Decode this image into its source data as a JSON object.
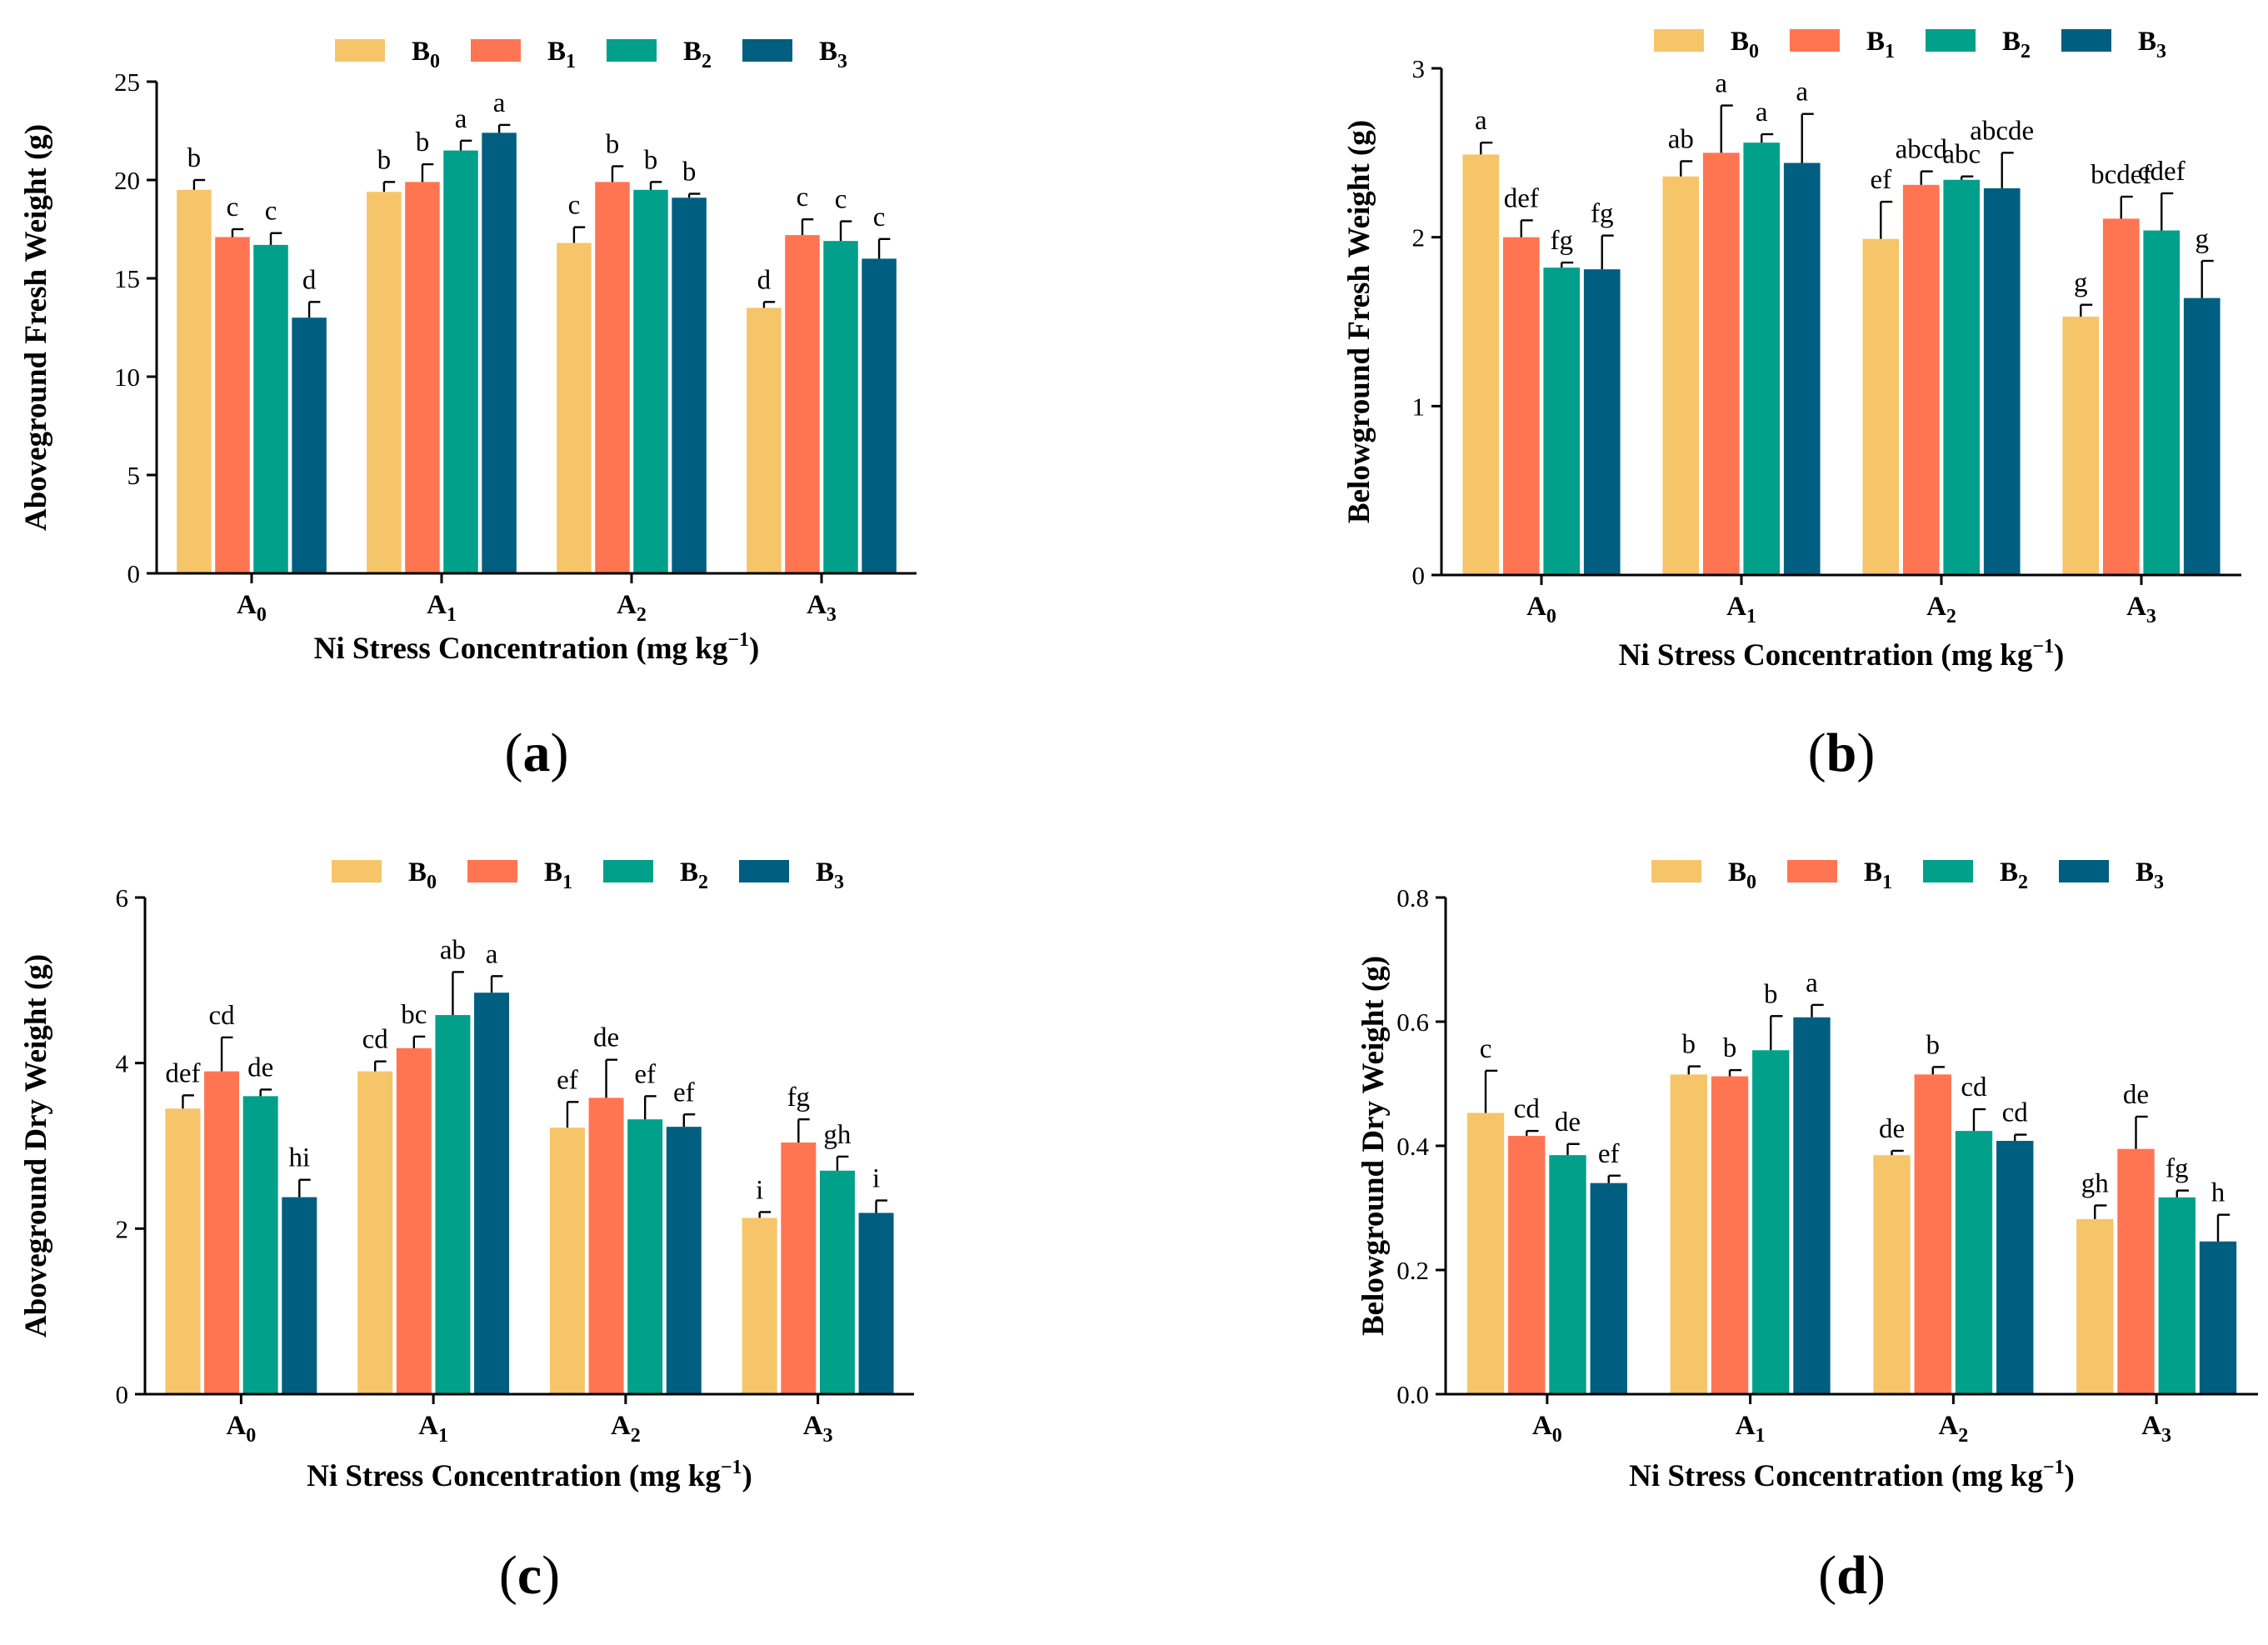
{
  "colors": {
    "B0": "#F6C56A",
    "B1": "#FF7552",
    "B2": "#00A08B",
    "B3": "#005F80"
  },
  "chart_data": [
    {
      "type": "bar",
      "panel": "(a)",
      "ylabel": "Aboveground Fresh Weight (g)",
      "xlabel": "Ni Stress Concentration (mg kg−1)",
      "ylim": [
        0,
        25
      ],
      "yticks": [
        "0",
        "5",
        "10",
        "15",
        "20",
        "25"
      ],
      "categories": [
        "A0",
        "A1",
        "A2",
        "A3"
      ],
      "series": [
        {
          "name": "B0",
          "values": [
            19.5,
            19.4,
            16.8,
            13.5
          ],
          "errors": [
            0.5,
            0.5,
            0.8,
            0.3
          ],
          "letters": [
            "b",
            "b",
            "c",
            "d"
          ]
        },
        {
          "name": "B1",
          "values": [
            17.1,
            19.9,
            19.9,
            17.2
          ],
          "errors": [
            0.4,
            0.9,
            0.8,
            0.8
          ],
          "letters": [
            "c",
            "b",
            "b",
            "c"
          ]
        },
        {
          "name": "B2",
          "values": [
            16.7,
            21.5,
            19.5,
            16.9
          ],
          "errors": [
            0.6,
            0.5,
            0.4,
            1.0
          ],
          "letters": [
            "c",
            "a",
            "b",
            "c"
          ]
        },
        {
          "name": "B3",
          "values": [
            13.0,
            22.4,
            19.1,
            16.0
          ],
          "errors": [
            0.8,
            0.4,
            0.2,
            1.0
          ],
          "letters": [
            "d",
            "a",
            "b",
            "c"
          ]
        }
      ]
    },
    {
      "type": "bar",
      "panel": "(b)",
      "ylabel": "Belowground Fresh Weight (g)",
      "xlabel": "Ni Stress Concentration (mg kg−1)",
      "ylim": [
        0,
        3
      ],
      "yticks": [
        "0",
        "1",
        "2",
        "3"
      ],
      "categories": [
        "A0",
        "A1",
        "A2",
        "A3"
      ],
      "series": [
        {
          "name": "B0",
          "values": [
            2.49,
            2.36,
            1.99,
            1.53
          ],
          "errors": [
            0.07,
            0.09,
            0.22,
            0.07
          ],
          "letters": [
            "a",
            "ab",
            "ef",
            "g"
          ]
        },
        {
          "name": "B1",
          "values": [
            2.0,
            2.5,
            2.31,
            2.11
          ],
          "errors": [
            0.1,
            0.28,
            0.08,
            0.13
          ],
          "letters": [
            "def",
            "a",
            "abcd",
            "bcdef"
          ]
        },
        {
          "name": "B2",
          "values": [
            1.82,
            2.56,
            2.34,
            2.04
          ],
          "errors": [
            0.03,
            0.05,
            0.02,
            0.22
          ],
          "letters": [
            "fg",
            "a",
            "abc",
            "cdef"
          ]
        },
        {
          "name": "B3",
          "values": [
            1.81,
            2.44,
            2.29,
            1.64
          ],
          "errors": [
            0.2,
            0.29,
            0.21,
            0.22
          ],
          "letters": [
            "fg",
            "a",
            "abcde",
            "g"
          ]
        }
      ]
    },
    {
      "type": "bar",
      "panel": "(c)",
      "ylabel": "Aboveground Dry Weight (g)",
      "xlabel": "Ni Stress Concentration (mg kg−1)",
      "ylim": [
        0,
        6
      ],
      "yticks": [
        "0",
        "2",
        "4",
        "6"
      ],
      "categories": [
        "A0",
        "A1",
        "A2",
        "A3"
      ],
      "series": [
        {
          "name": "B0",
          "values": [
            3.45,
            3.9,
            3.22,
            2.13
          ],
          "errors": [
            0.16,
            0.12,
            0.31,
            0.07
          ],
          "letters": [
            "def",
            "cd",
            "ef",
            "i"
          ]
        },
        {
          "name": "B1",
          "values": [
            3.9,
            4.18,
            3.58,
            3.04
          ],
          "errors": [
            0.41,
            0.14,
            0.46,
            0.28
          ],
          "letters": [
            "cd",
            "bc",
            "de",
            "fg"
          ]
        },
        {
          "name": "B2",
          "values": [
            3.6,
            4.58,
            3.32,
            2.7
          ],
          "errors": [
            0.08,
            0.52,
            0.28,
            0.17
          ],
          "letters": [
            "de",
            "ab",
            "ef",
            "gh"
          ]
        },
        {
          "name": "B3",
          "values": [
            2.38,
            4.85,
            3.23,
            2.19
          ],
          "errors": [
            0.21,
            0.2,
            0.15,
            0.15
          ],
          "letters": [
            "hi",
            "a",
            "ef",
            "i"
          ]
        }
      ]
    },
    {
      "type": "bar",
      "panel": "(d)",
      "ylabel": "Belowground Dry Weight (g)",
      "xlabel": "Ni Stress Concentration (mg kg−1)",
      "ylim": [
        0,
        0.8
      ],
      "yticks": [
        "0.0",
        "0.2",
        "0.4",
        "0.6",
        "0.8"
      ],
      "categories": [
        "A0",
        "A1",
        "A2",
        "A3"
      ],
      "series": [
        {
          "name": "B0",
          "values": [
            0.453,
            0.515,
            0.385,
            0.282
          ],
          "errors": [
            0.068,
            0.013,
            0.007,
            0.022
          ],
          "letters": [
            "c",
            "b",
            "de",
            "gh"
          ]
        },
        {
          "name": "B1",
          "values": [
            0.416,
            0.512,
            0.515,
            0.395
          ],
          "errors": [
            0.008,
            0.01,
            0.012,
            0.052
          ],
          "letters": [
            "cd",
            "b",
            "b",
            "de"
          ]
        },
        {
          "name": "B2",
          "values": [
            0.385,
            0.554,
            0.424,
            0.317
          ],
          "errors": [
            0.018,
            0.055,
            0.035,
            0.011
          ],
          "letters": [
            "de",
            "b",
            "cd",
            "fg"
          ]
        },
        {
          "name": "B3",
          "values": [
            0.34,
            0.607,
            0.408,
            0.246
          ],
          "errors": [
            0.012,
            0.02,
            0.01,
            0.043
          ],
          "letters": [
            "ef",
            "a",
            "cd",
            "h"
          ]
        }
      ]
    }
  ]
}
